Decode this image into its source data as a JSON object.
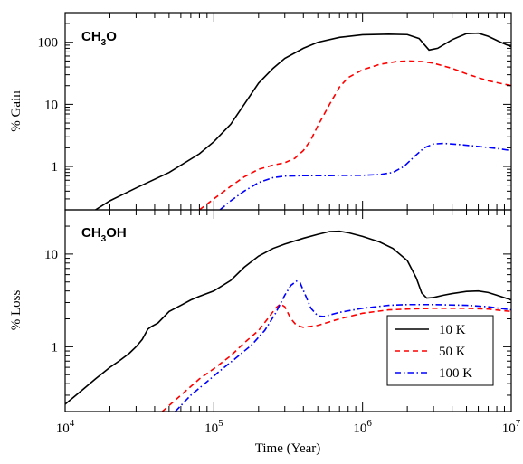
{
  "chart_data": [
    {
      "type": "line",
      "panel": "top",
      "title_main": "CH",
      "title_sub": "3",
      "title_tail": "O",
      "ylabel": "% Gain",
      "yscale": "log",
      "xscale": "log",
      "ylim": [
        0.2,
        300
      ],
      "xlim": [
        10000,
        10000000
      ],
      "y_ticks": [
        {
          "value": 1,
          "label": "1"
        },
        {
          "value": 10,
          "label": "10"
        },
        {
          "value": 100,
          "label": "100"
        }
      ],
      "series": [
        {
          "key": "10K",
          "color": "#000000",
          "dash": "none",
          "x": [
            16000,
            20000,
            30000,
            50000,
            80000,
            100000,
            130000,
            160000,
            200000,
            250000,
            300000,
            400000,
            500000,
            700000,
            1000000,
            1500000,
            2000000,
            2400000,
            2800000,
            3200000,
            4000000,
            5000000,
            6000000,
            7000000,
            8500000,
            10000000
          ],
          "y": [
            0.2,
            0.28,
            0.45,
            0.8,
            1.6,
            2.5,
            4.8,
            10,
            22,
            38,
            55,
            80,
            100,
            120,
            132,
            135,
            133,
            115,
            75,
            80,
            110,
            138,
            140,
            125,
            100,
            85
          ]
        },
        {
          "key": "50K",
          "color": "#ff0000",
          "dash": "6,4",
          "x": [
            80000,
            100000,
            130000,
            160000,
            200000,
            250000,
            300000,
            350000,
            400000,
            450000,
            500000,
            600000,
            700000,
            800000,
            1000000,
            1300000,
            1700000,
            2000000,
            2500000,
            3000000,
            4000000,
            5000000,
            7000000,
            10000000
          ],
          "y": [
            0.2,
            0.3,
            0.48,
            0.68,
            0.9,
            1.05,
            1.15,
            1.35,
            1.8,
            2.7,
            4.5,
            10,
            19,
            27,
            36,
            44,
            49,
            50,
            49,
            46,
            38,
            31,
            24,
            20
          ]
        },
        {
          "key": "100K",
          "color": "#0000ff",
          "dash": "7,3,1.5,3",
          "x": [
            110000,
            130000,
            160000,
            200000,
            250000,
            300000,
            400000,
            600000,
            800000,
            1000000,
            1300000,
            1600000,
            1900000,
            2200000,
            2600000,
            3000000,
            3500000,
            4500000,
            6000000,
            8000000,
            10000000
          ],
          "y": [
            0.2,
            0.28,
            0.4,
            0.55,
            0.66,
            0.7,
            0.71,
            0.71,
            0.72,
            0.72,
            0.74,
            0.8,
            1.0,
            1.4,
            2.0,
            2.3,
            2.35,
            2.25,
            2.1,
            1.95,
            1.8
          ]
        }
      ]
    },
    {
      "type": "line",
      "panel": "bottom",
      "title_main": "CH",
      "title_sub": "3",
      "title_tail": "OH",
      "ylabel": "% Loss",
      "yscale": "log",
      "xscale": "log",
      "ylim": [
        0.2,
        30
      ],
      "xlim": [
        10000,
        10000000
      ],
      "y_ticks": [
        {
          "value": 1,
          "label": "1"
        },
        {
          "value": 10,
          "label": "10"
        }
      ],
      "x_ticks": [
        {
          "value": 10000,
          "base": "10",
          "exp": "4"
        },
        {
          "value": 100000,
          "base": "10",
          "exp": "5"
        },
        {
          "value": 1000000,
          "base": "10",
          "exp": "6"
        },
        {
          "value": 10000000,
          "base": "10",
          "exp": "7"
        }
      ],
      "xlabel": "Time (Year)",
      "legend": {
        "placement": "bottom-right",
        "entries": [
          {
            "key": "10K",
            "label": "10 K"
          },
          {
            "key": "50K",
            "label": "50 K"
          },
          {
            "key": "100K",
            "label": "100 K"
          }
        ]
      },
      "series": [
        {
          "key": "10K",
          "color": "#000000",
          "dash": "none",
          "x": [
            10000,
            13000,
            16000,
            20000,
            23000,
            27000,
            30000,
            33000,
            36000,
            38000,
            42000,
            50000,
            55000,
            60000,
            70000,
            80000,
            100000,
            130000,
            160000,
            200000,
            250000,
            300000,
            400000,
            500000,
            600000,
            700000,
            800000,
            1000000,
            1300000,
            1600000,
            2000000,
            2300000,
            2500000,
            2700000,
            3000000,
            3500000,
            4000000,
            5000000,
            6000000,
            7000000,
            8000000,
            10000000
          ],
          "y": [
            0.24,
            0.34,
            0.45,
            0.6,
            0.7,
            0.85,
            1.0,
            1.2,
            1.55,
            1.65,
            1.8,
            2.4,
            2.6,
            2.8,
            3.2,
            3.5,
            4.0,
            5.2,
            7.2,
            9.5,
            11.5,
            12.8,
            14.8,
            16.3,
            17.5,
            17.6,
            17.0,
            15.5,
            13.5,
            11.5,
            8.5,
            5.5,
            3.8,
            3.35,
            3.4,
            3.6,
            3.75,
            3.95,
            4.0,
            3.85,
            3.6,
            3.2
          ]
        },
        {
          "key": "50K",
          "color": "#ff0000",
          "dash": "6,4",
          "x": [
            45000,
            60000,
            80000,
            100000,
            130000,
            160000,
            200000,
            230000,
            260000,
            280000,
            300000,
            330000,
            360000,
            400000,
            500000,
            700000,
            1000000,
            1500000,
            2000000,
            3000000,
            5000000,
            7000000,
            10000000
          ],
          "y": [
            0.2,
            0.3,
            0.45,
            0.58,
            0.8,
            1.1,
            1.5,
            2.0,
            2.6,
            2.9,
            2.7,
            2.0,
            1.7,
            1.62,
            1.7,
            2.0,
            2.3,
            2.5,
            2.55,
            2.6,
            2.6,
            2.55,
            2.4
          ]
        },
        {
          "key": "100K",
          "color": "#0000ff",
          "dash": "7,3,1.5,3",
          "x": [
            55000,
            70000,
            90000,
            110000,
            140000,
            180000,
            220000,
            260000,
            300000,
            330000,
            360000,
            380000,
            410000,
            450000,
            500000,
            550000,
            600000,
            700000,
            1000000,
            1500000,
            2000000,
            3000000,
            5000000,
            7000000,
            10000000
          ],
          "y": [
            0.2,
            0.3,
            0.42,
            0.55,
            0.75,
            1.05,
            1.5,
            2.3,
            3.6,
            4.6,
            5.1,
            4.9,
            3.7,
            2.6,
            2.15,
            2.12,
            2.2,
            2.35,
            2.6,
            2.8,
            2.85,
            2.85,
            2.8,
            2.7,
            2.5
          ]
        }
      ]
    }
  ]
}
